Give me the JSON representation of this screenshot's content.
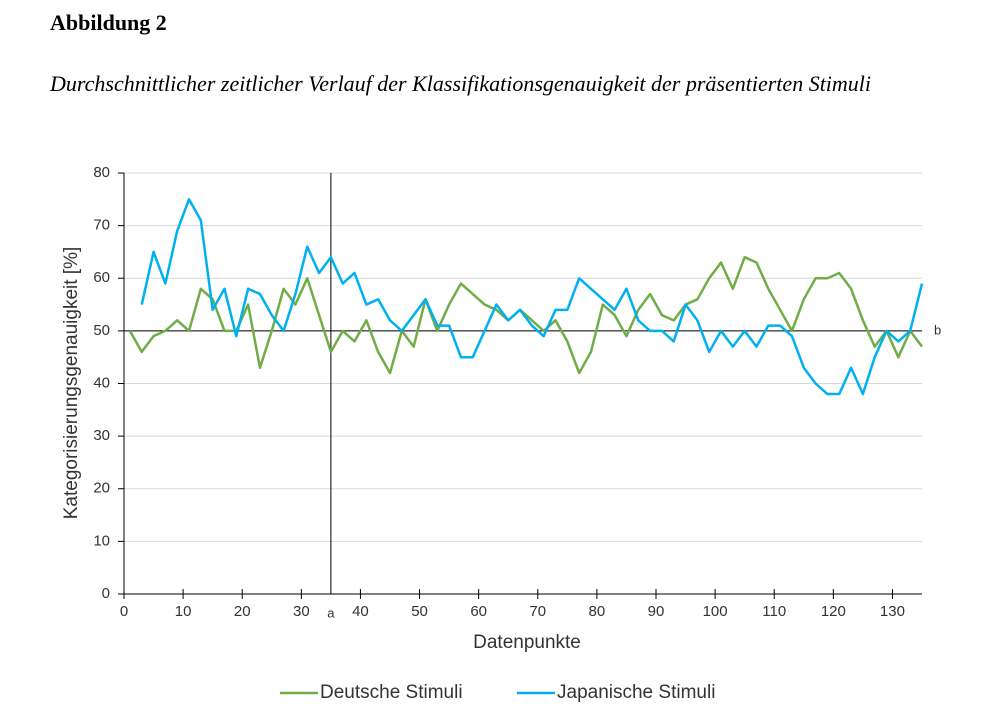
{
  "document": {
    "heading": "Abbildung 2",
    "caption": "Durchschnittlicher zeitlicher Verlauf der Klassifikationsgenauigkeit der präsentierten Stimuli"
  },
  "chart_data": {
    "type": "line",
    "x_label": "Datenpunkte",
    "y_label": "Kategorisierungsgenauigkeit [%]",
    "xlim": [
      0,
      135
    ],
    "ylim": [
      0,
      80
    ],
    "xticks": [
      0,
      10,
      20,
      30,
      40,
      50,
      60,
      70,
      80,
      90,
      100,
      110,
      120,
      130
    ],
    "yticks": [
      0,
      10,
      20,
      30,
      40,
      50,
      60,
      70,
      80
    ],
    "grid": true,
    "legend": "bottom",
    "reference_lines": [
      {
        "axis": "x",
        "value": 35,
        "label": "a"
      },
      {
        "axis": "y",
        "value": 50,
        "label": "b"
      }
    ],
    "x": [
      1,
      3,
      5,
      7,
      9,
      11,
      13,
      15,
      17,
      19,
      21,
      23,
      25,
      27,
      29,
      31,
      33,
      35,
      37,
      39,
      41,
      43,
      45,
      47,
      49,
      51,
      53,
      55,
      57,
      59,
      61,
      63,
      65,
      67,
      69,
      71,
      73,
      75,
      77,
      79,
      81,
      83,
      85,
      87,
      89,
      91,
      93,
      95,
      97,
      99,
      101,
      103,
      105,
      107,
      109,
      111,
      113,
      115,
      117,
      119,
      121,
      123,
      125,
      127,
      129,
      131,
      133,
      135
    ],
    "series": [
      {
        "name": "Deutsche Stimuli",
        "color": "#70ad47",
        "values": [
          50,
          46,
          49,
          50,
          52,
          50,
          58,
          56,
          50,
          50,
          55,
          43,
          50,
          58,
          55,
          60,
          53,
          46,
          50,
          48,
          52,
          46,
          42,
          50,
          47,
          56,
          50,
          55,
          59,
          57,
          55,
          54,
          52,
          54,
          52,
          50,
          52,
          48,
          42,
          46,
          55,
          53,
          49,
          54,
          57,
          53,
          52,
          55,
          56,
          60,
          63,
          58,
          64,
          63,
          58,
          54,
          50,
          56,
          60,
          60,
          61,
          58,
          52,
          47,
          50,
          45,
          50,
          47
        ]
      },
      {
        "name": "Japanische Stimuli",
        "color": "#00b0f0",
        "values": [
          null,
          55,
          65,
          59,
          69,
          75,
          71,
          54,
          58,
          49,
          58,
          57,
          53,
          50,
          57,
          66,
          61,
          64,
          59,
          61,
          55,
          56,
          52,
          50,
          53,
          56,
          51,
          51,
          45,
          45,
          50,
          55,
          52,
          54,
          51,
          49,
          54,
          54,
          60,
          58,
          56,
          54,
          58,
          52,
          50,
          50,
          48,
          55,
          52,
          46,
          50,
          47,
          50,
          47,
          51,
          51,
          49,
          43,
          40,
          38,
          38,
          43,
          38,
          45,
          50,
          48,
          50,
          59
        ]
      }
    ]
  }
}
